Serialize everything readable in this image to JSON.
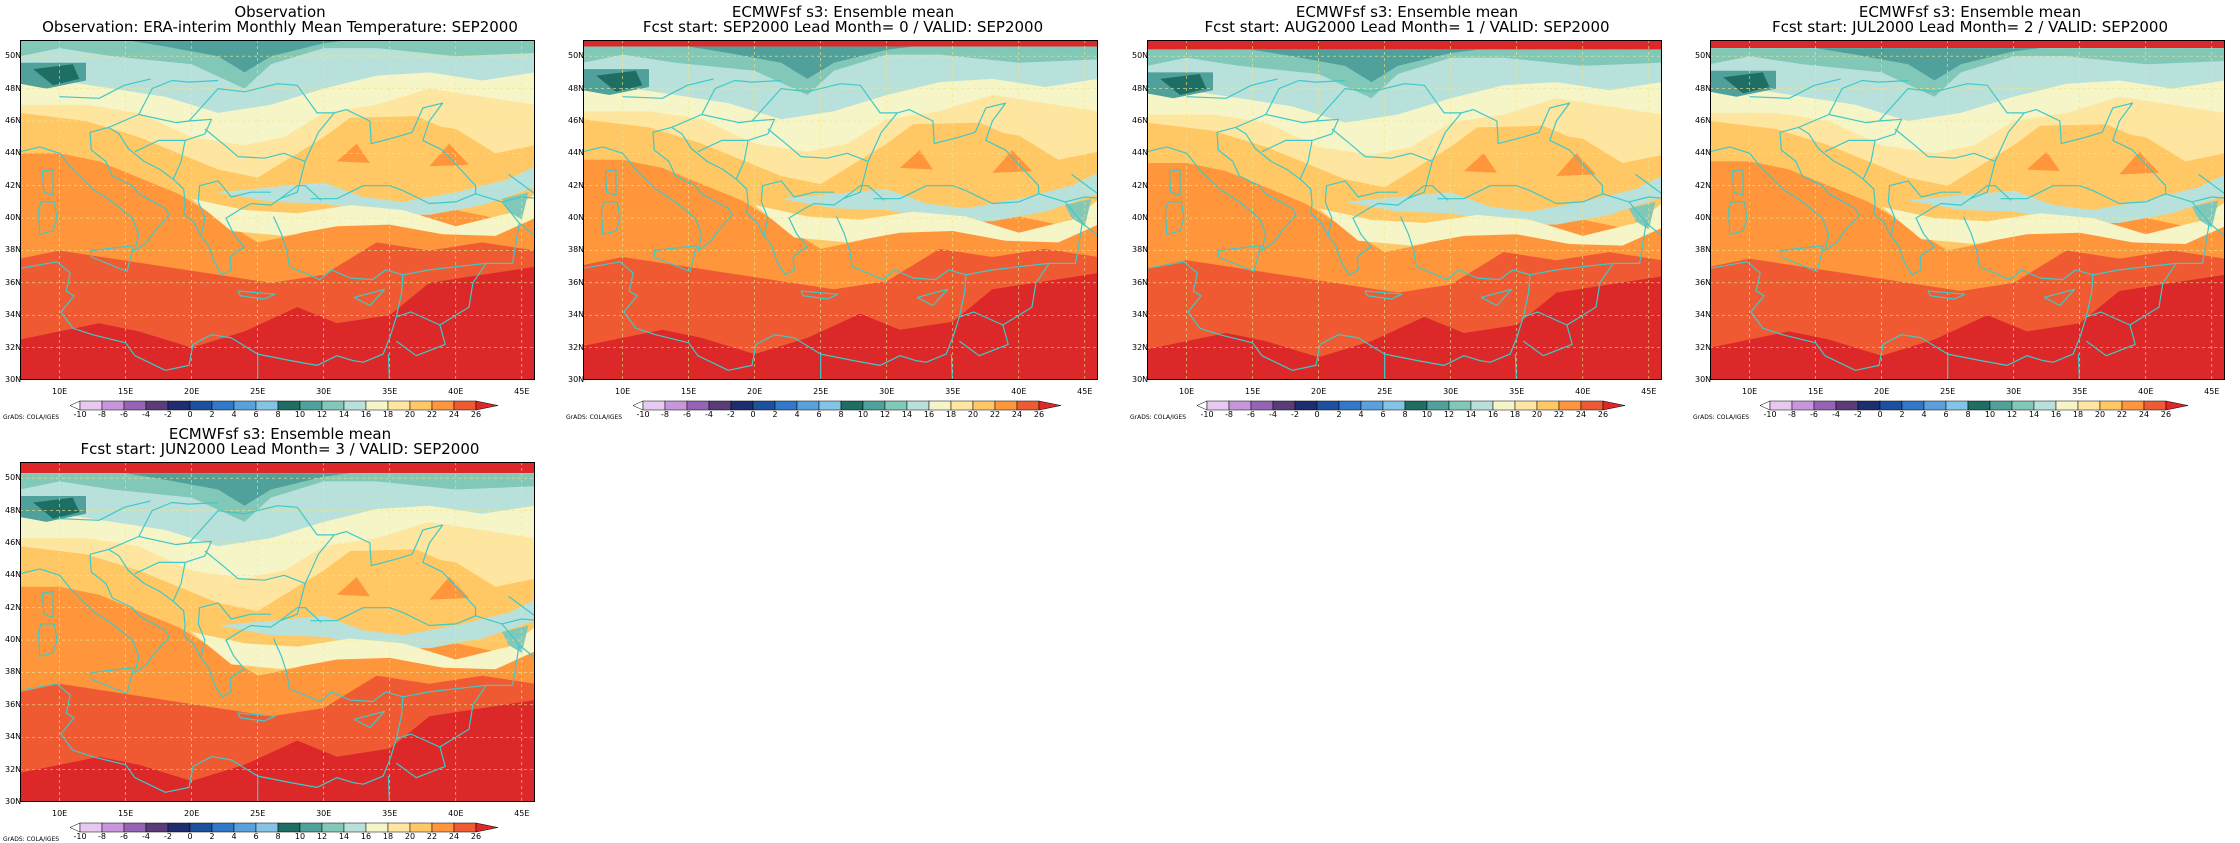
{
  "panels": [
    {
      "title1": "Observation",
      "title2": "Observation: ERA-interim Monthly Mean Temperature: SEP2000"
    },
    {
      "title1": "ECMWFsf s3: Ensemble mean",
      "title2": "Fcst start: SEP2000  Lead Month= 0 / VALID: SEP2000"
    },
    {
      "title1": "ECMWFsf s3: Ensemble mean",
      "title2": "Fcst start: AUG2000  Lead Month= 1 / VALID: SEP2000"
    },
    {
      "title1": "ECMWFsf s3: Ensemble mean",
      "title2": "Fcst start: JUL2000  Lead Month= 2 / VALID: SEP2000"
    },
    {
      "title1": "ECMWFsf s3: Ensemble mean",
      "title2": "Fcst start: JUN2000  Lead Month= 3 / VALID: SEP2000"
    }
  ],
  "map": {
    "lat_labels": [
      "50N",
      "48N",
      "46N",
      "44N",
      "42N",
      "40N",
      "38N",
      "36N",
      "34N",
      "32N",
      "30N"
    ],
    "lon_labels": [
      "10E",
      "15E",
      "20E",
      "25E",
      "30E",
      "35E",
      "40E",
      "45E"
    ],
    "lat_range": [
      30,
      51
    ],
    "lon_range": [
      7,
      46
    ],
    "coastline_color": "#3ec9c9",
    "gridline_color": "#f0e68c"
  },
  "colorbar": {
    "labels": [
      "-10",
      "-8",
      "-6",
      "-4",
      "-2",
      "0",
      "2",
      "4",
      "6",
      "8",
      "10",
      "12",
      "14",
      "16",
      "18",
      "20",
      "22",
      "24",
      "26"
    ],
    "colors": [
      "#ffffff",
      "#e6c8f0",
      "#c896dc",
      "#9664b4",
      "#5a3c78",
      "#1e2d6e",
      "#1e50a0",
      "#3278c8",
      "#5aa0dc",
      "#82c3e6",
      "#1e6e64",
      "#50a09b",
      "#82c8b9",
      "#b9e1dc",
      "#f5f5c8",
      "#ffe6a0",
      "#ffc864",
      "#ff963c",
      "#f05a32",
      "#dc2828"
    ]
  },
  "credit": "GrADS: COLA/IGES",
  "temperature_bands": {
    "description_levels": "contour fill levels in degC",
    "levels": [
      8,
      10,
      12,
      14,
      16,
      18,
      20,
      22,
      24,
      26
    ]
  }
}
